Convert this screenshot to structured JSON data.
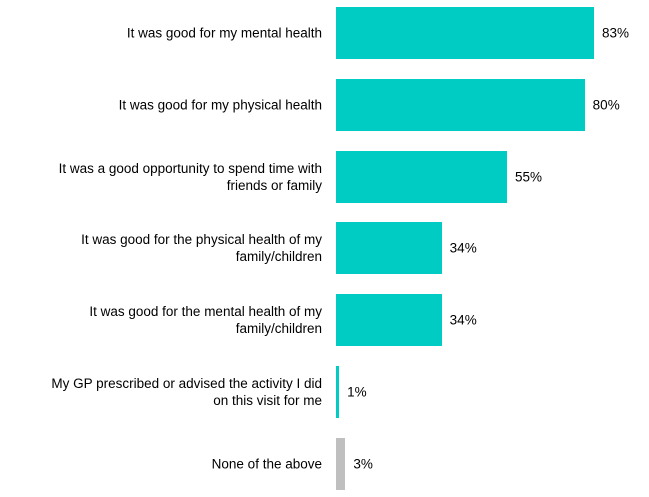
{
  "chart_data": {
    "type": "barh",
    "categories": [
      "It was good for my mental health",
      "It was good for my physical health",
      "It was a good opportunity to spend time with\nfriends or family",
      "It was good for the physical health of my\nfamily/children",
      "It was good for the mental health of my\nfamily/children",
      "My GP prescribed or advised the activity I did\non this visit for me",
      "None of the above"
    ],
    "values": [
      83,
      80,
      55,
      34,
      34,
      1,
      3
    ],
    "value_labels": [
      "83%",
      "80%",
      "55%",
      "34%",
      "34%",
      "1%",
      "3%"
    ],
    "colors": [
      "#00ccc4",
      "#00ccc4",
      "#00ccc4",
      "#00ccc4",
      "#00ccc4",
      "#00ccc4",
      "#bfbfbf"
    ]
  }
}
